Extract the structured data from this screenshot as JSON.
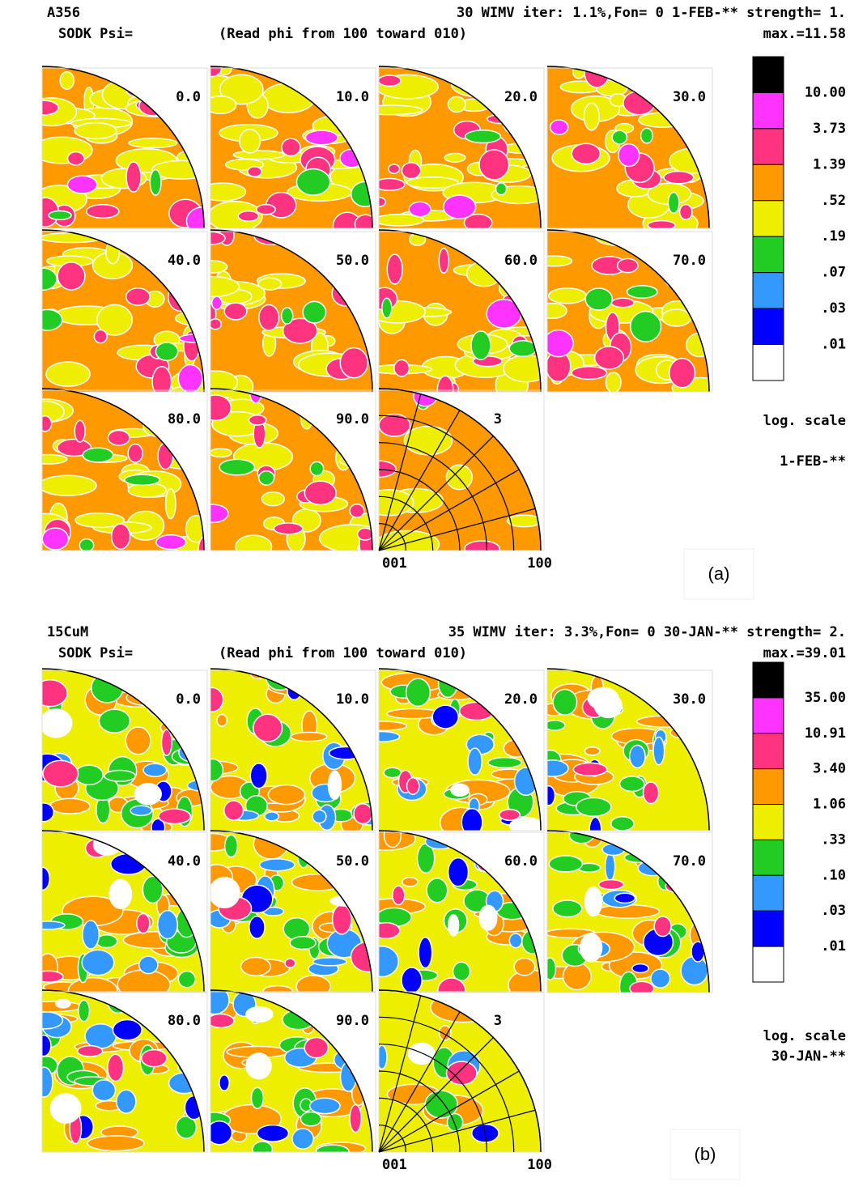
{
  "panels": [
    {
      "sample": "A356",
      "header_right": "30 WIMV iter: 1.1%,Fon=  0  1-FEB-** strength= 1.",
      "subheader_left": "SODK Psi=",
      "subheader_mid": "(Read phi from 100 toward 010)",
      "max": "max.=11.58",
      "sections": [
        "0.0",
        "10.0",
        "20.0",
        "30.0",
        "40.0",
        "50.0",
        "60.0",
        "70.0",
        "80.0",
        "90.0"
      ],
      "pole_label": "3",
      "axis_labels": [
        "001",
        "100"
      ],
      "legend": {
        "levels": [
          "10.00",
          "3.73",
          "1.39",
          ".52",
          ".19",
          ".07",
          ".03",
          ".01"
        ],
        "colors": [
          "#000000",
          "#ff33ff",
          "#ff3380",
          "#ff9900",
          "#eeee00",
          "#22cc22",
          "#3399ff",
          "#0000ff",
          "#ffffff"
        ],
        "scale": "log. scale",
        "date": "1-FEB-**"
      },
      "label": "(a)"
    },
    {
      "sample": "15CuM",
      "header_right": "35 WIMV iter: 3.3%,Fon=  0 30-JAN-** strength= 2.",
      "subheader_left": "SODK Psi=",
      "subheader_mid": "(Read phi from 100 toward 010)",
      "max": "max.=39.01",
      "sections": [
        "0.0",
        "10.0",
        "20.0",
        "30.0",
        "40.0",
        "50.0",
        "60.0",
        "70.0",
        "80.0",
        "90.0"
      ],
      "pole_label": "3",
      "axis_labels": [
        "001",
        "100"
      ],
      "legend": {
        "levels": [
          "35.00",
          "10.91",
          "3.40",
          "1.06",
          ".33",
          ".10",
          ".03",
          ".01"
        ],
        "colors": [
          "#000000",
          "#ff33ff",
          "#ff3380",
          "#ff9900",
          "#eeee00",
          "#22cc22",
          "#3399ff",
          "#0000ff",
          "#ffffff"
        ],
        "scale": "log. scale",
        "date": "30-JAN-**"
      },
      "label": "(b)"
    }
  ]
}
